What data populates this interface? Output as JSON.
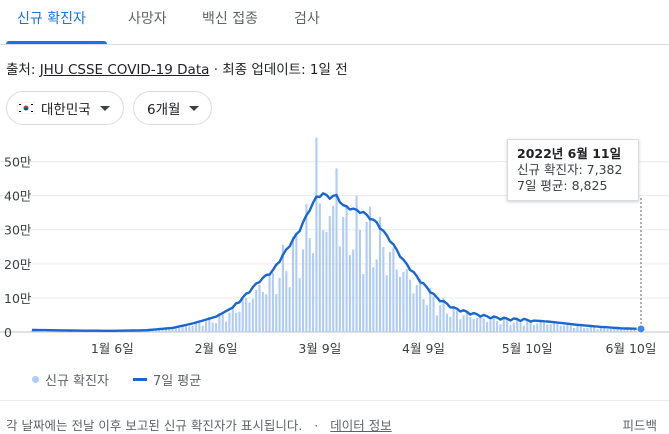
{
  "tabs": [
    {
      "label": "신규 확진자",
      "active": true
    },
    {
      "label": "사망자",
      "active": false
    },
    {
      "label": "백신 접종",
      "active": false
    },
    {
      "label": "검사",
      "active": false
    }
  ],
  "source": {
    "prefix": "출처:",
    "link": "JHU CSSE COVID-19 Data",
    "suffix": "· 최종 업데이트: 1일 전"
  },
  "filters": {
    "region": "대한민국",
    "range": "6개월"
  },
  "tooltip": {
    "date": "2022년 6월 11일",
    "cases": "신규 확진자: 7,382",
    "average": "7일 평균: 8,825"
  },
  "legend": {
    "bars": "신규 확진자",
    "line": "7일 평균"
  },
  "footer": {
    "text": "각 날짜에는 전날 이후 보고된 신규 확진자가 표시됩니다.",
    "separator": "·",
    "link": "데이터 정보",
    "feedback": "피드백"
  },
  "colors": {
    "accent": "#1a73e8",
    "bar": "#aecbfa",
    "line": "#1967d2",
    "grid": "#e8eaed"
  },
  "chart_data": {
    "type": "bar",
    "series": [
      {
        "name": "신규 확진자",
        "type": "bar"
      },
      {
        "name": "7일 평균",
        "type": "line"
      }
    ],
    "x_ticks": [
      "1월 6일",
      "2월 6일",
      "3월 9일",
      "4월 9일",
      "5월 10일",
      "6월 10일"
    ],
    "x_tick_days": [
      24,
      55,
      86,
      117,
      148,
      179
    ],
    "y_ticks": [
      "0",
      "10만",
      "20만",
      "30만",
      "40만",
      "50만"
    ],
    "y_tick_values": [
      0,
      100000,
      200000,
      300000,
      400000,
      500000
    ],
    "ylim": [
      0,
      575000
    ],
    "x_range_days": [
      0,
      182
    ],
    "moving_average": [
      [
        0,
        6000
      ],
      [
        14,
        4000
      ],
      [
        24,
        3500
      ],
      [
        34,
        5000
      ],
      [
        42,
        12000
      ],
      [
        48,
        25000
      ],
      [
        55,
        45000
      ],
      [
        60,
        72000
      ],
      [
        64,
        110000
      ],
      [
        68,
        150000
      ],
      [
        72,
        180000
      ],
      [
        76,
        240000
      ],
      [
        80,
        300000
      ],
      [
        83,
        360000
      ],
      [
        85,
        395000
      ],
      [
        87,
        405000
      ],
      [
        89,
        395000
      ],
      [
        91,
        400000
      ],
      [
        93,
        370000
      ],
      [
        96,
        360000
      ],
      [
        99,
        350000
      ],
      [
        103,
        320000
      ],
      [
        107,
        270000
      ],
      [
        111,
        210000
      ],
      [
        116,
        150000
      ],
      [
        121,
        100000
      ],
      [
        126,
        70000
      ],
      [
        131,
        55000
      ],
      [
        136,
        45000
      ],
      [
        142,
        38000
      ],
      [
        148,
        35000
      ],
      [
        155,
        30000
      ],
      [
        162,
        22000
      ],
      [
        170,
        15000
      ],
      [
        176,
        11000
      ],
      [
        182,
        8825
      ]
    ],
    "daily_peak": {
      "day": 85,
      "value": 570000
    },
    "selected": {
      "day": 182,
      "date": "2022년 6월 11일",
      "cases": 7382,
      "average": 8825
    }
  }
}
